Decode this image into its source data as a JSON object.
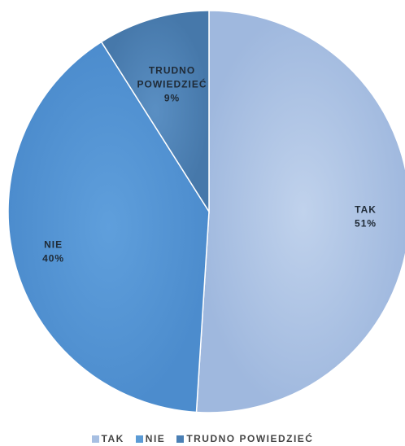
{
  "chart_data": {
    "type": "pie",
    "title": "",
    "categories": [
      "TAK",
      "NIE",
      "TRUDNO POWIEDZIEĆ"
    ],
    "values": [
      51,
      40,
      9
    ],
    "value_labels": [
      "51%",
      "40%",
      "9%"
    ],
    "colors": [
      "#a7bfe2",
      "#5b9bd5",
      "#4a7fb4"
    ],
    "legend": "bottom",
    "labels": [
      {
        "lines": [
          "TAK"
        ],
        "value": "51%"
      },
      {
        "lines": [
          "NIE"
        ],
        "value": "40%"
      },
      {
        "lines": [
          "TRUDNO",
          "POWIEDZIEĆ"
        ],
        "value": "9%"
      }
    ]
  }
}
